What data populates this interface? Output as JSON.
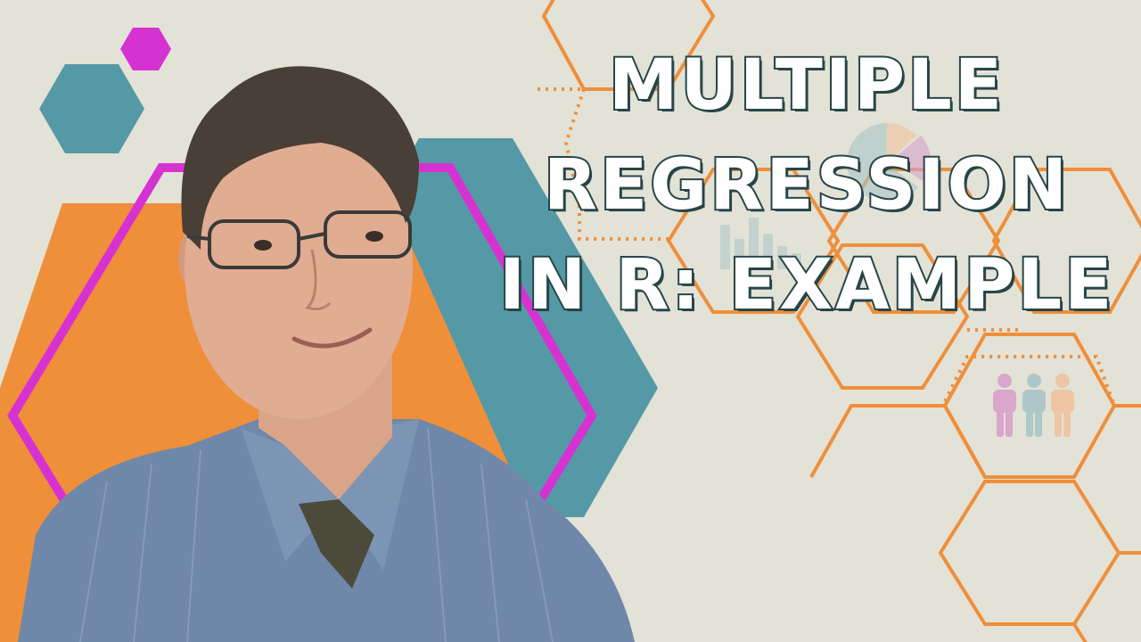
{
  "title": {
    "line1": "MULTIPLE",
    "line2": "REGRESSION",
    "line3": "IN R: EXAMPLE"
  },
  "colors": {
    "background": "#e3e2d6",
    "orange": "#ef8f3a",
    "teal": "#5699a6",
    "magenta": "#d632d2",
    "title_fill": "#ffffff",
    "title_outline": "#274548",
    "icon_pink": "#d9a0cc",
    "icon_teal": "#a9c6c8",
    "icon_peach": "#efc3a0"
  },
  "icons": [
    "pie-chart-icon",
    "bar-chart-icon",
    "people-icon"
  ],
  "photo": "man-with-glasses-in-striped-shirt"
}
